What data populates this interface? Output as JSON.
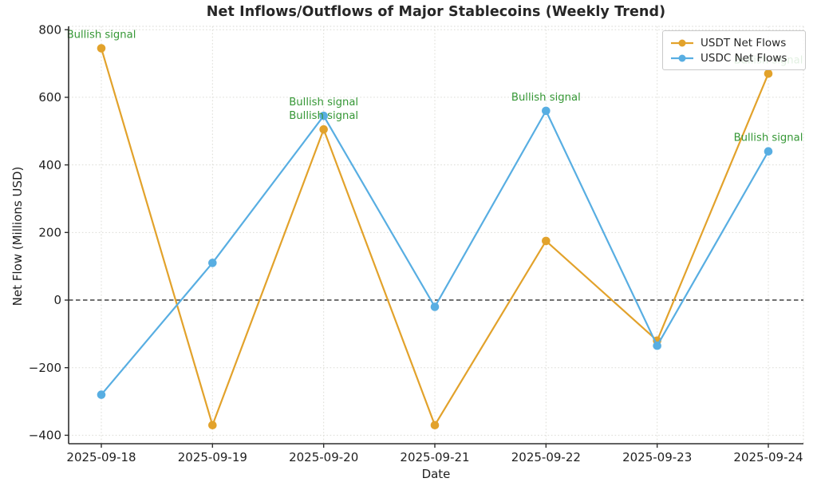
{
  "chart_data": {
    "type": "line",
    "title": "Net Inflows/Outflows of Major Stablecoins (Weekly Trend)",
    "xlabel": "Date",
    "ylabel": "Net Flow (Millions USD)",
    "x": [
      "2025-09-18",
      "2025-09-19",
      "2025-09-20",
      "2025-09-21",
      "2025-09-22",
      "2025-09-23",
      "2025-09-24"
    ],
    "series": [
      {
        "name": "USDT Net Flows",
        "color": "#E2A22B",
        "values": [
          745,
          -370,
          505,
          -370,
          175,
          -120,
          670
        ]
      },
      {
        "name": "USDC Net Flows",
        "color": "#58AEE2",
        "values": [
          -280,
          110,
          545,
          -20,
          560,
          -135,
          440
        ]
      }
    ],
    "yticks": [
      {
        "label": "800",
        "value": 800
      },
      {
        "label": "600",
        "value": 600
      },
      {
        "label": "400",
        "value": 400
      },
      {
        "label": "200",
        "value": 200
      },
      {
        "label": "0",
        "value": 0
      },
      {
        "label": "−200",
        "value": -200
      },
      {
        "label": "−400",
        "value": -400
      }
    ],
    "ylim": [
      -425,
      810
    ],
    "grid": "dotted",
    "zero_line": true,
    "legend_position": "upper right",
    "annotation_color": "#359735",
    "annotations": [
      {
        "text": "Bullish signal",
        "series": 0,
        "index": 0
      },
      {
        "text": "Bullish signal",
        "series": 1,
        "index": 2
      },
      {
        "text": "Bullish signal",
        "series": 0,
        "index": 2
      },
      {
        "text": "Bullish signal",
        "series": 1,
        "index": 4
      },
      {
        "text": "Bullish signal",
        "series": 0,
        "index": 6
      },
      {
        "text": "Bullish signal",
        "series": 1,
        "index": 6
      }
    ]
  },
  "legend": {
    "items": [
      {
        "label": "USDT Net Flows",
        "color": "#E2A22B"
      },
      {
        "label": "USDC Net Flows",
        "color": "#58AEE2"
      }
    ]
  }
}
